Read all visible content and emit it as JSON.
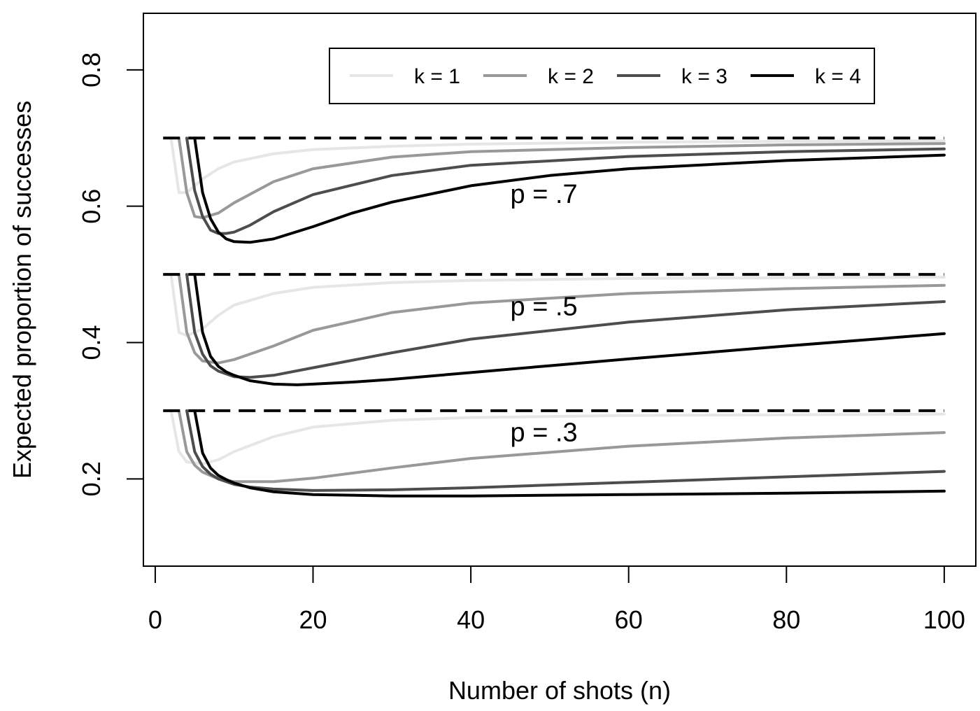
{
  "chart_data": {
    "type": "line",
    "title": "",
    "xlabel": "Number of shots (n)",
    "ylabel": "Expected proportion of successes",
    "xlim": [
      -1.5,
      104
    ],
    "ylim": [
      0.072,
      0.883
    ],
    "xticks": [
      0,
      20,
      40,
      60,
      80,
      100
    ],
    "xtick_labels": [
      "0",
      "20",
      "40",
      "60",
      "80",
      "100"
    ],
    "yticks": [
      0.2,
      0.4,
      0.6,
      0.8
    ],
    "ytick_labels": [
      "0.2",
      "0.4",
      "0.6",
      "0.8"
    ],
    "grid": false,
    "legend_position": "top",
    "legend": [
      {
        "label": "k = 1",
        "color": "#e6e6e6"
      },
      {
        "label": "k = 2",
        "color": "#999999"
      },
      {
        "label": "k = 3",
        "color": "#4d4d4d"
      },
      {
        "label": "k = 4",
        "color": "#000000"
      }
    ],
    "reference_lines": [
      {
        "p": 0.7,
        "y": 0.7,
        "x": [
          1,
          100
        ],
        "style": "dashed"
      },
      {
        "p": 0.5,
        "y": 0.5,
        "x": [
          1,
          100
        ],
        "style": "dashed"
      },
      {
        "p": 0.3,
        "y": 0.3,
        "x": [
          1,
          100
        ],
        "style": "dashed"
      }
    ],
    "annotations": [
      {
        "text": "p = .7",
        "x": 45,
        "y": 0.605
      },
      {
        "text": "p = .5",
        "x": 45,
        "y": 0.44
      },
      {
        "text": "p = .3",
        "x": 45,
        "y": 0.255
      }
    ],
    "series": [
      {
        "group": "p = .7",
        "k": 1,
        "color": "#e6e6e6",
        "x": [
          2,
          3,
          4,
          6,
          8,
          10,
          15,
          20,
          30,
          40,
          60,
          80,
          100
        ],
        "y": [
          0.7,
          0.62,
          0.62,
          0.64,
          0.655,
          0.665,
          0.677,
          0.683,
          0.688,
          0.691,
          0.694,
          0.695,
          0.696
        ]
      },
      {
        "group": "p = .7",
        "k": 2,
        "color": "#999999",
        "x": [
          3,
          4,
          5,
          6,
          8,
          10,
          15,
          20,
          30,
          40,
          60,
          80,
          100
        ],
        "y": [
          0.7,
          0.62,
          0.585,
          0.583,
          0.59,
          0.605,
          0.636,
          0.655,
          0.672,
          0.68,
          0.686,
          0.69,
          0.692
        ]
      },
      {
        "group": "p = .7",
        "k": 3,
        "color": "#4d4d4d",
        "x": [
          4,
          5,
          6,
          7,
          8,
          9,
          10,
          12,
          15,
          20,
          30,
          40,
          60,
          80,
          100
        ],
        "y": [
          0.7,
          0.623,
          0.585,
          0.565,
          0.56,
          0.56,
          0.562,
          0.572,
          0.592,
          0.617,
          0.645,
          0.66,
          0.673,
          0.68,
          0.684
        ]
      },
      {
        "group": "p = .7",
        "k": 4,
        "color": "#000000",
        "x": [
          5,
          6,
          7,
          8,
          9,
          10,
          12,
          15,
          20,
          25,
          30,
          40,
          50,
          60,
          80,
          100
        ],
        "y": [
          0.7,
          0.62,
          0.582,
          0.562,
          0.552,
          0.548,
          0.547,
          0.552,
          0.57,
          0.59,
          0.606,
          0.63,
          0.645,
          0.655,
          0.667,
          0.675
        ]
      },
      {
        "group": "p = .5",
        "k": 1,
        "color": "#e6e6e6",
        "x": [
          2,
          3,
          4,
          6,
          8,
          10,
          15,
          20,
          30,
          40,
          60,
          80,
          100
        ],
        "y": [
          0.5,
          0.415,
          0.41,
          0.42,
          0.44,
          0.455,
          0.472,
          0.481,
          0.488,
          0.491,
          0.494,
          0.495,
          0.496
        ]
      },
      {
        "group": "p = .5",
        "k": 2,
        "color": "#999999",
        "x": [
          3,
          4,
          5,
          6,
          8,
          10,
          15,
          20,
          30,
          40,
          60,
          80,
          100
        ],
        "y": [
          0.5,
          0.415,
          0.385,
          0.373,
          0.37,
          0.375,
          0.395,
          0.418,
          0.444,
          0.458,
          0.472,
          0.479,
          0.484
        ]
      },
      {
        "group": "p = .5",
        "k": 3,
        "color": "#4d4d4d",
        "x": [
          4,
          5,
          6,
          7,
          8,
          10,
          12,
          15,
          20,
          30,
          40,
          60,
          80,
          100
        ],
        "y": [
          0.5,
          0.415,
          0.383,
          0.366,
          0.358,
          0.35,
          0.349,
          0.352,
          0.363,
          0.385,
          0.405,
          0.43,
          0.448,
          0.46
        ]
      },
      {
        "group": "p = .5",
        "k": 4,
        "color": "#000000",
        "x": [
          5,
          6,
          7,
          8,
          9,
          10,
          12,
          15,
          18,
          20,
          25,
          30,
          40,
          50,
          60,
          80,
          100
        ],
        "y": [
          0.5,
          0.415,
          0.38,
          0.365,
          0.357,
          0.352,
          0.344,
          0.339,
          0.338,
          0.339,
          0.342,
          0.346,
          0.356,
          0.366,
          0.376,
          0.395,
          0.413
        ]
      },
      {
        "group": "p = .3",
        "k": 1,
        "color": "#e6e6e6",
        "x": [
          2,
          3,
          4,
          6,
          8,
          10,
          15,
          20,
          30,
          40,
          60,
          80,
          100
        ],
        "y": [
          0.3,
          0.24,
          0.225,
          0.222,
          0.228,
          0.24,
          0.262,
          0.276,
          0.286,
          0.29,
          0.293,
          0.294,
          0.295
        ]
      },
      {
        "group": "p = .3",
        "k": 2,
        "color": "#999999",
        "x": [
          3,
          4,
          5,
          6,
          8,
          10,
          15,
          20,
          30,
          40,
          60,
          80,
          100
        ],
        "y": [
          0.3,
          0.24,
          0.22,
          0.21,
          0.2,
          0.196,
          0.196,
          0.201,
          0.216,
          0.23,
          0.248,
          0.26,
          0.268
        ]
      },
      {
        "group": "p = .3",
        "k": 3,
        "color": "#4d4d4d",
        "x": [
          4,
          5,
          6,
          7,
          8,
          10,
          12,
          15,
          20,
          30,
          40,
          60,
          80,
          100
        ],
        "y": [
          0.3,
          0.24,
          0.218,
          0.207,
          0.2,
          0.192,
          0.188,
          0.185,
          0.183,
          0.184,
          0.187,
          0.195,
          0.203,
          0.211
        ]
      },
      {
        "group": "p = .3",
        "k": 4,
        "color": "#000000",
        "x": [
          5,
          6,
          7,
          8,
          9,
          10,
          12,
          15,
          20,
          30,
          40,
          60,
          80,
          100
        ],
        "y": [
          0.3,
          0.238,
          0.216,
          0.205,
          0.199,
          0.194,
          0.187,
          0.181,
          0.177,
          0.175,
          0.175,
          0.177,
          0.179,
          0.182
        ]
      }
    ]
  }
}
